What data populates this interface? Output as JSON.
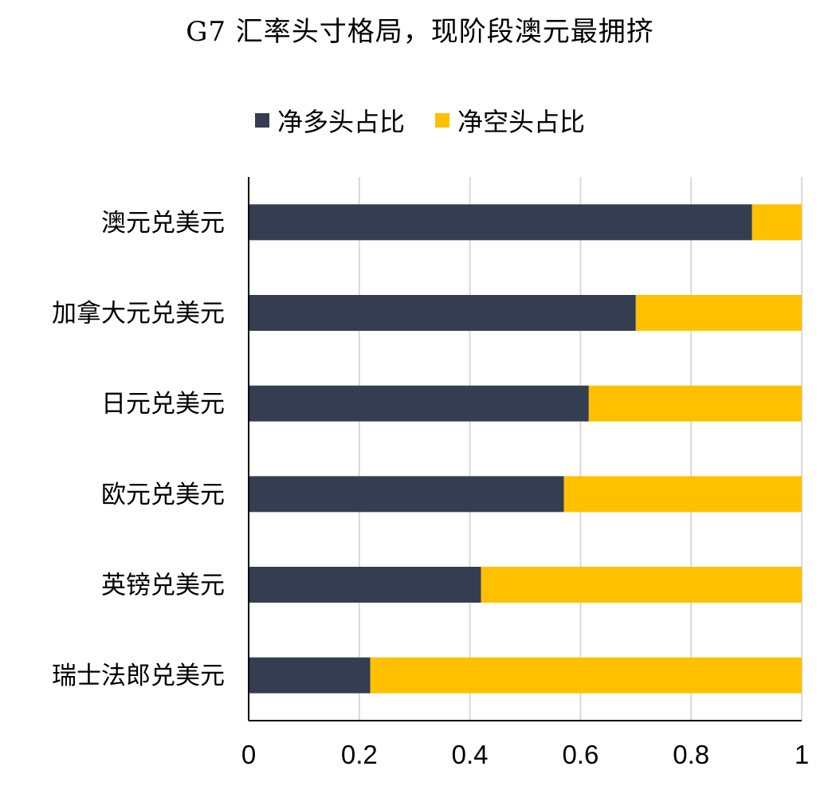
{
  "colors": {
    "long": "#353E50",
    "short": "#FFC000",
    "grid": "#D9D9D9",
    "axis": "#000000"
  },
  "chart_data": {
    "type": "bar",
    "orientation": "horizontal",
    "stacked": true,
    "title": "G7 汇率头寸格局，现阶段澳元最拥挤",
    "categories": [
      "澳元兑美元",
      "加拿大元兑美元",
      "日元兑美元",
      "欧元兑美元",
      "英镑兑美元",
      "瑞士法郎兑美元"
    ],
    "series": [
      {
        "name": "净多头占比",
        "color": "#353E50",
        "values": [
          0.91,
          0.7,
          0.615,
          0.57,
          0.42,
          0.22
        ]
      },
      {
        "name": "净空头占比",
        "color": "#FFC000",
        "values": [
          0.09,
          0.3,
          0.385,
          0.43,
          0.58,
          0.78
        ]
      }
    ],
    "xlim": [
      0,
      1
    ],
    "xticks": [
      "0",
      "0.2",
      "0.4",
      "0.6",
      "0.8",
      "1"
    ],
    "xlabel": "",
    "ylabel": "",
    "legend_position": "top",
    "grid": "vertical"
  }
}
